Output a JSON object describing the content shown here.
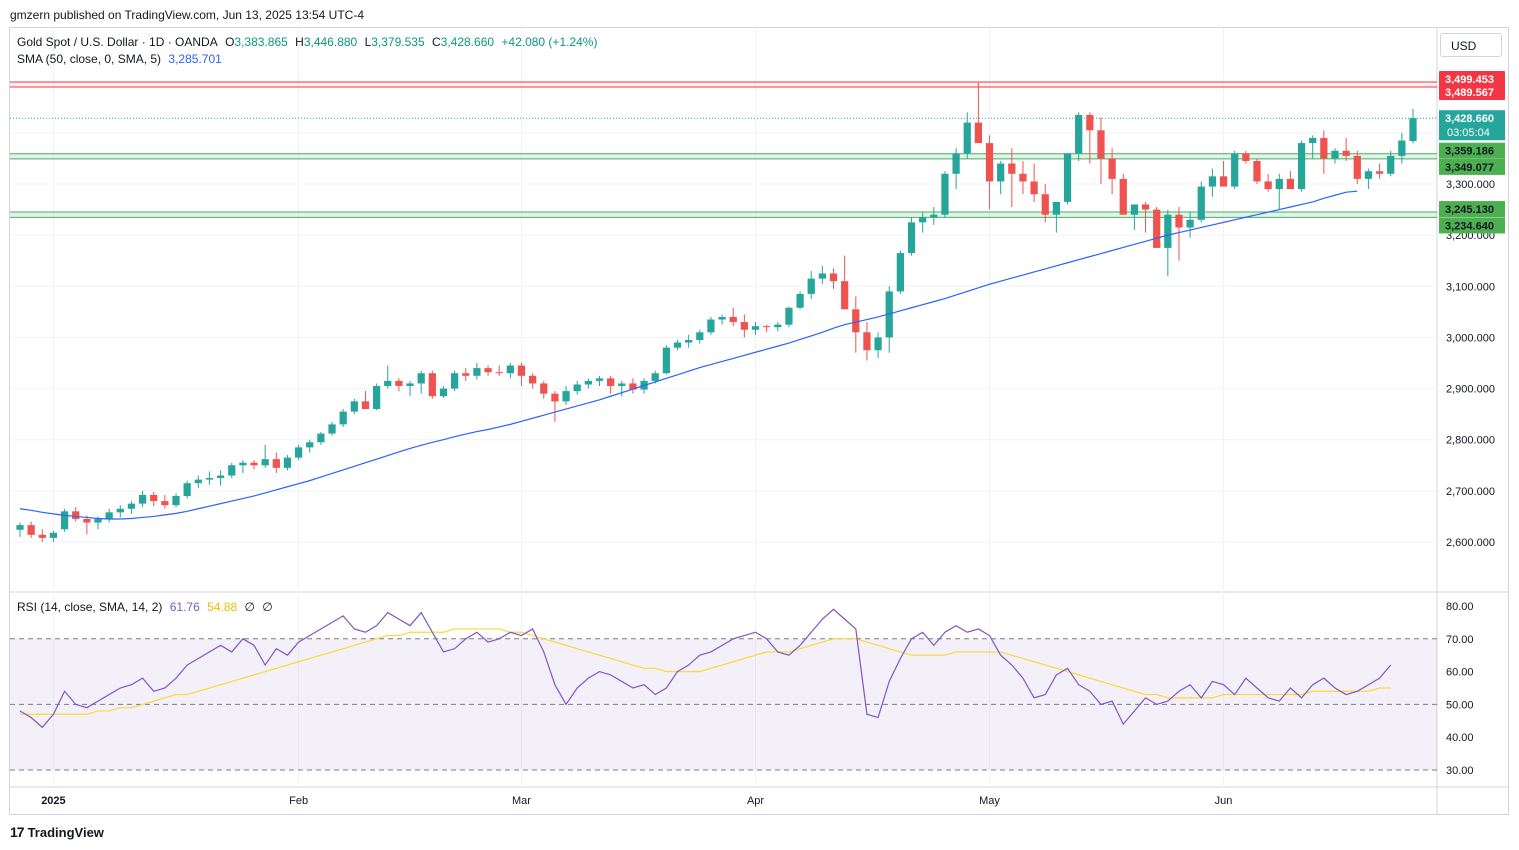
{
  "header": {
    "publisher": "gmzern published on TradingView.com, Jun 13, 2025 13:54 UTC-4"
  },
  "legend": {
    "symbol": "Gold Spot / U.S. Dollar · 1D · OANDA",
    "o_label": "O",
    "o": "3,383.865",
    "h_label": "H",
    "h": "3,446.880",
    "l_label": "L",
    "l": "3,379.535",
    "c_label": "C",
    "c": "3,428.660",
    "change": "+42.080 (+1.24%)",
    "sma_label": "SMA (50, close, 0, SMA, 5)",
    "sma_value": "3,285.701",
    "rsi_label": "RSI (14, close, SMA, 14, 2)",
    "rsi_value": "61.76",
    "rsi_sma_value": "54.88",
    "rsi_extra1": "∅",
    "rsi_extra2": "∅"
  },
  "currency_button": "USD",
  "footer": {
    "brand": "TradingView",
    "mark": "17"
  },
  "colors": {
    "up": "#26a69a",
    "down": "#ef5350",
    "sma": "#2962ff",
    "rsi": "#7e57c2",
    "rsi_sma": "#fdd835",
    "resistance": "#f23645",
    "support": "#089981"
  },
  "chart_data": {
    "type": "candlestick",
    "title": "Gold Spot / U.S. Dollar · 1D · OANDA",
    "price_axis": {
      "range": [
        2550,
        3600
      ],
      "ticks": [
        2600,
        2700,
        2800,
        2900,
        3000,
        3100,
        3200,
        3300
      ],
      "tick_labels": [
        "2,600.000",
        "2,700.000",
        "2,800.000",
        "2,900.000",
        "3,000.000",
        "3,100.000",
        "3,200.000",
        "3,300.000"
      ]
    },
    "time_axis": {
      "labels": [
        "2025",
        "Feb",
        "Mar",
        "Apr",
        "May",
        "Jun"
      ],
      "label_index": [
        3,
        25,
        45,
        66,
        87,
        108
      ]
    },
    "levels": {
      "resistance": [
        3499.453,
        3489.567
      ],
      "resistance_labels": [
        "3,499.453",
        "3,489.567"
      ],
      "support_zones": [
        [
          3359.186,
          3349.077
        ],
        [
          3245.13,
          3234.64
        ]
      ],
      "support_labels": [
        "3,359.186",
        "3,349.077",
        "3,245.130",
        "3,234.640"
      ],
      "last_price": 3428.66,
      "last_price_label": "3,428.660",
      "countdown": "03:05:04"
    },
    "candles_ohlc": [
      [
        2624,
        2638,
        2610,
        2633
      ],
      [
        2633,
        2640,
        2608,
        2614
      ],
      [
        2614,
        2625,
        2600,
        2608
      ],
      [
        2608,
        2622,
        2600,
        2618
      ],
      [
        2625,
        2665,
        2620,
        2660
      ],
      [
        2660,
        2668,
        2640,
        2645
      ],
      [
        2645,
        2652,
        2615,
        2638
      ],
      [
        2638,
        2650,
        2625,
        2645
      ],
      [
        2645,
        2665,
        2638,
        2658
      ],
      [
        2658,
        2672,
        2648,
        2665
      ],
      [
        2665,
        2680,
        2655,
        2675
      ],
      [
        2675,
        2700,
        2668,
        2692
      ],
      [
        2692,
        2698,
        2670,
        2680
      ],
      [
        2680,
        2692,
        2665,
        2672
      ],
      [
        2672,
        2695,
        2668,
        2690
      ],
      [
        2690,
        2720,
        2685,
        2715
      ],
      [
        2715,
        2730,
        2705,
        2722
      ],
      [
        2722,
        2738,
        2712,
        2725
      ],
      [
        2725,
        2740,
        2710,
        2730
      ],
      [
        2730,
        2755,
        2725,
        2750
      ],
      [
        2750,
        2760,
        2735,
        2755
      ],
      [
        2755,
        2760,
        2742,
        2750
      ],
      [
        2750,
        2790,
        2745,
        2762
      ],
      [
        2762,
        2775,
        2735,
        2745
      ],
      [
        2745,
        2770,
        2740,
        2765
      ],
      [
        2765,
        2790,
        2760,
        2785
      ],
      [
        2785,
        2800,
        2775,
        2795
      ],
      [
        2795,
        2815,
        2790,
        2812
      ],
      [
        2812,
        2835,
        2808,
        2830
      ],
      [
        2830,
        2860,
        2825,
        2855
      ],
      [
        2855,
        2880,
        2850,
        2875
      ],
      [
        2875,
        2895,
        2865,
        2860
      ],
      [
        2860,
        2910,
        2858,
        2905
      ],
      [
        2905,
        2945,
        2900,
        2915
      ],
      [
        2915,
        2920,
        2895,
        2905
      ],
      [
        2905,
        2915,
        2885,
        2910
      ],
      [
        2910,
        2935,
        2890,
        2930
      ],
      [
        2930,
        2935,
        2880,
        2885
      ],
      [
        2885,
        2905,
        2882,
        2900
      ],
      [
        2900,
        2935,
        2895,
        2930
      ],
      [
        2930,
        2940,
        2915,
        2925
      ],
      [
        2925,
        2950,
        2918,
        2940
      ],
      [
        2940,
        2945,
        2925,
        2932
      ],
      [
        2932,
        2945,
        2925,
        2930
      ],
      [
        2930,
        2950,
        2920,
        2945
      ],
      [
        2945,
        2950,
        2905,
        2925
      ],
      [
        2925,
        2930,
        2900,
        2910
      ],
      [
        2910,
        2915,
        2880,
        2890
      ],
      [
        2890,
        2895,
        2835,
        2875
      ],
      [
        2875,
        2905,
        2868,
        2895
      ],
      [
        2895,
        2915,
        2888,
        2908
      ],
      [
        2908,
        2920,
        2900,
        2915
      ],
      [
        2915,
        2925,
        2905,
        2920
      ],
      [
        2920,
        2925,
        2890,
        2905
      ],
      [
        2905,
        2915,
        2885,
        2910
      ],
      [
        2910,
        2920,
        2890,
        2898
      ],
      [
        2898,
        2920,
        2890,
        2915
      ],
      [
        2915,
        2935,
        2910,
        2930
      ],
      [
        2930,
        2985,
        2928,
        2980
      ],
      [
        2980,
        2995,
        2975,
        2990
      ],
      [
        2990,
        3005,
        2980,
        2995
      ],
      [
        2995,
        3015,
        2988,
        3010
      ],
      [
        3010,
        3040,
        3005,
        3035
      ],
      [
        3035,
        3045,
        3025,
        3040
      ],
      [
        3040,
        3058,
        3022,
        3030
      ],
      [
        3030,
        3045,
        3000,
        3015
      ],
      [
        3015,
        3030,
        3005,
        3022
      ],
      [
        3022,
        3025,
        3010,
        3020
      ],
      [
        3020,
        3030,
        3012,
        3025
      ],
      [
        3025,
        3060,
        3020,
        3058
      ],
      [
        3058,
        3090,
        3055,
        3085
      ],
      [
        3085,
        3130,
        3075,
        3115
      ],
      [
        3115,
        3140,
        3105,
        3125
      ],
      [
        3125,
        3135,
        3095,
        3110
      ],
      [
        3110,
        3160,
        3075,
        3055
      ],
      [
        3055,
        3080,
        2970,
        3010
      ],
      [
        3010,
        3030,
        2955,
        2975
      ],
      [
        2975,
        3010,
        2960,
        3000
      ],
      [
        3000,
        3100,
        2970,
        3090
      ],
      [
        3090,
        3170,
        3085,
        3165
      ],
      [
        3165,
        3235,
        3160,
        3225
      ],
      [
        3225,
        3245,
        3205,
        3235
      ],
      [
        3235,
        3255,
        3220,
        3240
      ],
      [
        3240,
        3325,
        3235,
        3320
      ],
      [
        3320,
        3370,
        3290,
        3360
      ],
      [
        3360,
        3440,
        3350,
        3420
      ],
      [
        3420,
        3500,
        3380,
        3380
      ],
      [
        3380,
        3395,
        3250,
        3305
      ],
      [
        3305,
        3345,
        3280,
        3340
      ],
      [
        3340,
        3370,
        3255,
        3320
      ],
      [
        3320,
        3345,
        3280,
        3305
      ],
      [
        3305,
        3340,
        3265,
        3280
      ],
      [
        3280,
        3300,
        3225,
        3240
      ],
      [
        3240,
        3265,
        3205,
        3265
      ],
      [
        3265,
        3335,
        3260,
        3360
      ],
      [
        3360,
        3440,
        3345,
        3435
      ],
      [
        3435,
        3440,
        3340,
        3405
      ],
      [
        3405,
        3430,
        3300,
        3350
      ],
      [
        3350,
        3370,
        3280,
        3310
      ],
      [
        3310,
        3320,
        3240,
        3240
      ],
      [
        3240,
        3260,
        3210,
        3260
      ],
      [
        3260,
        3265,
        3205,
        3250
      ],
      [
        3250,
        3255,
        3180,
        3175
      ],
      [
        3175,
        3250,
        3120,
        3240
      ],
      [
        3240,
        3255,
        3150,
        3215
      ],
      [
        3215,
        3245,
        3195,
        3230
      ],
      [
        3230,
        3305,
        3225,
        3295
      ],
      [
        3295,
        3330,
        3275,
        3315
      ],
      [
        3315,
        3345,
        3300,
        3295
      ],
      [
        3295,
        3365,
        3290,
        3360
      ],
      [
        3360,
        3365,
        3340,
        3345
      ],
      [
        3345,
        3350,
        3300,
        3305
      ],
      [
        3305,
        3320,
        3285,
        3290
      ],
      [
        3290,
        3320,
        3250,
        3310
      ],
      [
        3310,
        3325,
        3295,
        3290
      ],
      [
        3290,
        3385,
        3285,
        3380
      ],
      [
        3380,
        3395,
        3350,
        3390
      ],
      [
        3390,
        3405,
        3320,
        3350
      ],
      [
        3350,
        3370,
        3340,
        3365
      ],
      [
        3365,
        3390,
        3345,
        3355
      ],
      [
        3355,
        3365,
        3300,
        3310
      ],
      [
        3310,
        3330,
        3290,
        3325
      ],
      [
        3325,
        3340,
        3310,
        3320
      ],
      [
        3320,
        3365,
        3315,
        3355
      ],
      [
        3355,
        3400,
        3340,
        3385
      ],
      [
        3383.865,
        3446.88,
        3379.535,
        3428.66
      ]
    ],
    "sma50": [
      2665,
      2662,
      2658,
      2655,
      2652,
      2650,
      2648,
      2646,
      2645,
      2645,
      2646,
      2648,
      2650,
      2653,
      2656,
      2660,
      2665,
      2670,
      2675,
      2680,
      2685,
      2690,
      2696,
      2702,
      2708,
      2714,
      2720,
      2727,
      2734,
      2741,
      2748,
      2755,
      2762,
      2769,
      2776,
      2783,
      2789,
      2795,
      2800,
      2806,
      2811,
      2816,
      2820,
      2825,
      2830,
      2836,
      2842,
      2848,
      2854,
      2860,
      2866,
      2872,
      2878,
      2885,
      2892,
      2899,
      2906,
      2913,
      2920,
      2927,
      2934,
      2941,
      2947,
      2953,
      2959,
      2965,
      2971,
      2977,
      2983,
      2989,
      2996,
      3003,
      3010,
      3018,
      3025,
      3030,
      3035,
      3040,
      3046,
      3052,
      3058,
      3064,
      3070,
      3076,
      3083,
      3090,
      3097,
      3104,
      3110,
      3116,
      3122,
      3128,
      3134,
      3140,
      3146,
      3152,
      3158,
      3164,
      3170,
      3176,
      3182,
      3188,
      3194,
      3200,
      3205,
      3210,
      3215,
      3220,
      3225,
      3230,
      3235,
      3240,
      3245,
      3250,
      3255,
      3260,
      3265,
      3272,
      3278,
      3284,
      3286
    ],
    "rsi": {
      "range": [
        25,
        82
      ],
      "ticks": [
        30,
        40,
        50,
        60,
        70,
        80
      ],
      "tick_labels": [
        "30.00",
        "40.00",
        "50.00",
        "60.00",
        "70.00",
        "80.00"
      ],
      "overbought": 70,
      "oversold": 30,
      "midline": 50,
      "values": [
        48,
        46,
        43,
        47,
        54,
        50,
        49,
        51,
        53,
        55,
        56,
        58,
        54,
        55,
        58,
        62,
        64,
        66,
        68,
        66,
        70,
        68,
        62,
        67,
        65,
        69,
        71,
        73,
        75,
        77,
        73,
        72,
        74,
        78,
        76,
        74,
        78,
        72,
        66,
        67,
        70,
        72,
        69,
        70,
        72,
        71,
        73,
        66,
        56,
        50,
        55,
        58,
        60,
        59,
        57,
        55,
        56,
        53,
        55,
        60,
        62,
        65,
        66,
        68,
        70,
        71,
        72,
        70,
        66,
        65,
        68,
        72,
        76,
        79,
        76,
        73,
        47,
        46,
        57,
        64,
        70,
        72,
        68,
        72,
        74,
        72,
        73,
        71,
        65,
        62,
        58,
        52,
        53,
        59,
        61,
        56,
        54,
        50,
        51,
        44,
        48,
        52,
        50,
        51,
        54,
        56,
        52,
        57,
        56,
        53,
        58,
        55,
        52,
        51,
        55,
        52,
        56,
        58,
        55,
        53,
        54,
        56,
        58,
        62
      ],
      "sma_values": [
        47,
        47,
        47,
        47,
        47,
        47,
        47,
        48,
        48,
        49,
        49,
        50,
        51,
        52,
        53,
        53,
        54,
        55,
        56,
        57,
        58,
        59,
        60,
        61,
        62,
        63,
        64,
        65,
        66,
        67,
        68,
        69,
        70,
        71,
        71,
        72,
        72,
        72,
        72,
        73,
        73,
        73,
        73,
        73,
        72,
        72,
        71,
        70,
        69,
        68,
        67,
        66,
        65,
        64,
        63,
        62,
        61,
        61,
        60,
        60,
        60,
        60,
        61,
        62,
        63,
        64,
        65,
        66,
        66,
        66,
        67,
        68,
        69,
        70,
        70,
        70,
        69,
        68,
        67,
        66,
        65,
        65,
        65,
        65,
        66,
        66,
        66,
        66,
        66,
        65,
        64,
        63,
        62,
        61,
        60,
        59,
        58,
        57,
        56,
        55,
        54,
        53,
        53,
        52,
        52,
        52,
        52,
        52,
        53,
        53,
        53,
        53,
        53,
        53,
        53,
        53,
        54,
        54,
        54,
        54,
        54,
        54,
        55,
        55
      ]
    }
  }
}
